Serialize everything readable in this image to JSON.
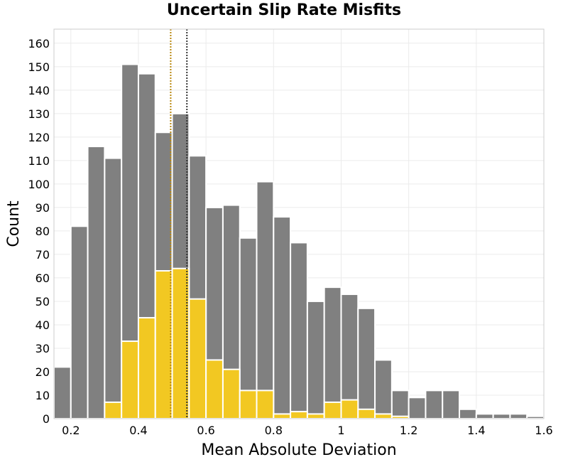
{
  "chart_data": {
    "type": "bar",
    "title": "Uncertain Slip Rate Misfits",
    "xlabel": "Mean Absolute Deviation",
    "ylabel": "Count",
    "xlim": [
      0.15,
      1.6
    ],
    "ylim": [
      0,
      166
    ],
    "xticks": [
      0.2,
      0.4,
      0.6,
      0.8,
      1,
      1.2,
      1.4,
      1.6
    ],
    "xtick_labels": [
      "0.2",
      "0.4",
      "0.6",
      "0.8",
      "1",
      "1.2",
      "1.4",
      "1.6"
    ],
    "yticks": [
      0,
      10,
      20,
      30,
      40,
      50,
      60,
      70,
      80,
      90,
      100,
      110,
      120,
      130,
      140,
      150,
      160
    ],
    "bin_start": 0.15,
    "bin_width": 0.05,
    "series": [
      {
        "color": "#808080",
        "values": [
          22,
          82,
          116,
          111,
          151,
          147,
          122,
          130,
          112,
          90,
          91,
          77,
          101,
          86,
          75,
          50,
          56,
          53,
          47,
          25,
          12,
          9,
          12,
          12,
          4,
          2,
          2,
          2,
          1
        ]
      },
      {
        "color": "#f2c822",
        "values": [
          0,
          0,
          0,
          7,
          33,
          43,
          63,
          64,
          51,
          25,
          21,
          12,
          12,
          2,
          3,
          2,
          7,
          8,
          4,
          2,
          1,
          0,
          0,
          0,
          0,
          0,
          0,
          0,
          0
        ]
      }
    ],
    "reference_lines": [
      {
        "x": 0.4955,
        "color": "#b8860b",
        "style": "dotted"
      },
      {
        "x": 0.5435,
        "color": "#333333",
        "style": "dotted"
      }
    ],
    "grid": true,
    "legend": "none"
  }
}
